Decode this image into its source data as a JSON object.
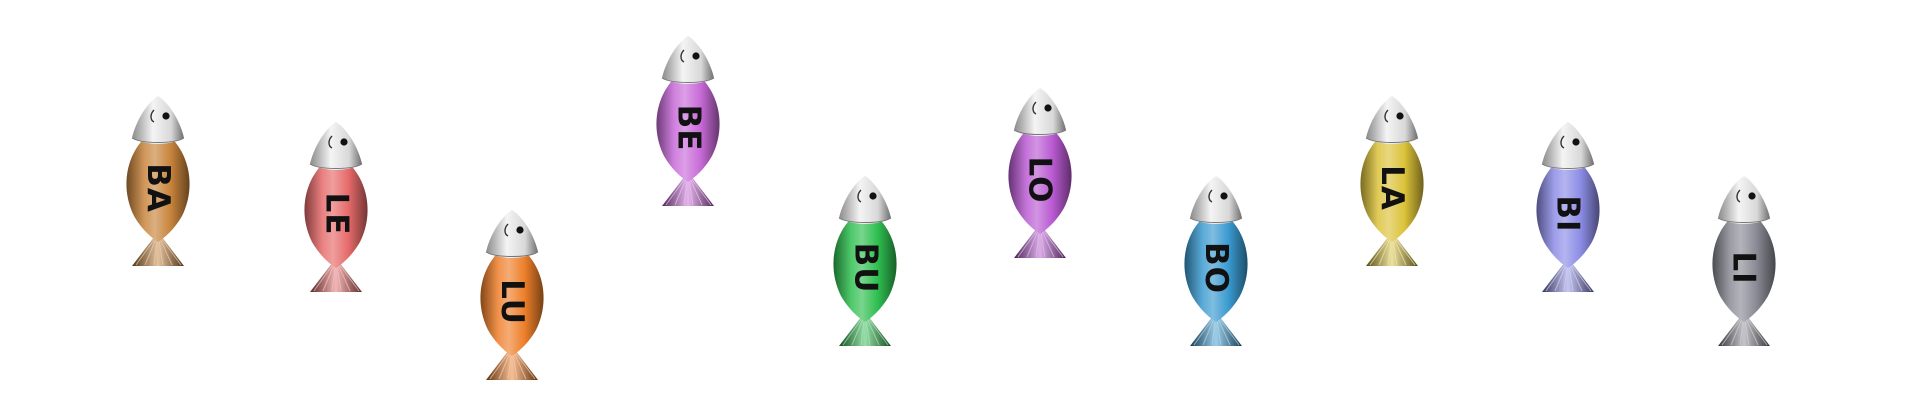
{
  "fish": [
    {
      "label": "BA",
      "color": "#c8843c"
    },
    {
      "label": "LE",
      "color": "#e66a6a"
    },
    {
      "label": "LU",
      "color": "#ee7f2a"
    },
    {
      "label": "BE",
      "color": "#c86ad8"
    },
    {
      "label": "BU",
      "color": "#2fbf50"
    },
    {
      "label": "LO",
      "color": "#b95ad2"
    },
    {
      "label": "BO",
      "color": "#3a9ad0"
    },
    {
      "label": "LA",
      "color": "#dcc23a"
    },
    {
      "label": "BI",
      "color": "#8c8ce6"
    },
    {
      "label": "LI",
      "color": "#8a8a95"
    }
  ]
}
